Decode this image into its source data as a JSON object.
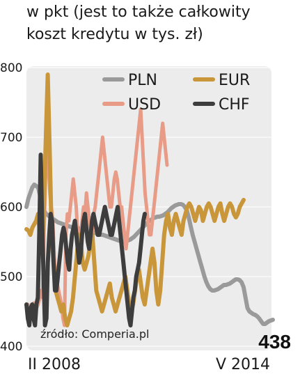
{
  "header": {
    "line1": "w pkt (jest to także całkowity",
    "line2": "koszt kredytu w tys. zł)"
  },
  "source": "źródło: Comperia.pl",
  "colors": {
    "PLN": "#9a9a9a",
    "USD": "#e89b86",
    "EUR": "#c9963a",
    "CHF": "#3d3d3d",
    "plot_bg": "#ececec"
  },
  "chart_data": {
    "type": "line",
    "x_start_label": "II 2008",
    "x_end_label": "V 2014",
    "ylim": [
      400,
      800
    ],
    "yticks": [
      "400",
      "500",
      "600",
      "700",
      "800"
    ],
    "last_value_label": "438",
    "series": [
      {
        "name": "PLN",
        "values": [
          600,
          612,
          620,
          628,
          632,
          630,
          628,
          615,
          604,
          595,
          590,
          588,
          586,
          584,
          582,
          580,
          578,
          577,
          576,
          575,
          574,
          573,
          572,
          571,
          571,
          570,
          570,
          569,
          568,
          567,
          566,
          566,
          565,
          565,
          564,
          563,
          562,
          561,
          560,
          560,
          559,
          558,
          557,
          556,
          555,
          554,
          553,
          552,
          551,
          550,
          550,
          551,
          552,
          553,
          555,
          557,
          560,
          563,
          566,
          569,
          572,
          575,
          578,
          580,
          582,
          584,
          585,
          586,
          586,
          587,
          588,
          590,
          592,
          595,
          598,
          600,
          602,
          603,
          604,
          604,
          603,
          600,
          595,
          585,
          572,
          560,
          550,
          540,
          530,
          520,
          510,
          500,
          492,
          486,
          482,
          480,
          480,
          481,
          482,
          484,
          486,
          488,
          488,
          489,
          490,
          492,
          494,
          496,
          496,
          495,
          492,
          485,
          470,
          455,
          450,
          448,
          446,
          445,
          443,
          440,
          436,
          432,
          432,
          434,
          436,
          437,
          438
        ]
      },
      {
        "name": "USD",
        "values": [
          460,
          455,
          450,
          458,
          462,
          460,
          455,
          460,
          468,
          480,
          470,
          560,
          640,
          680,
          660,
          620,
          600,
          580,
          530,
          500,
          490,
          480,
          470,
          460,
          440,
          430,
          560,
          590,
          580,
          600,
          620,
          640,
          620,
          600,
          560,
          540,
          560,
          580,
          600,
          590,
          620,
          600,
          580,
          560,
          560,
          590,
          600,
          620,
          640,
          660,
          680,
          700,
          680,
          660,
          640,
          620,
          600,
          600,
          620,
          640,
          650,
          640,
          620,
          600,
          600,
          580,
          560,
          540,
          560,
          580,
          600,
          620,
          640,
          660,
          680,
          700,
          720,
          740,
          700,
          660,
          620,
          600,
          580,
          560,
          560,
          580,
          600,
          620,
          640,
          660,
          680,
          700,
          720,
          700,
          680,
          660
        ]
      },
      {
        "name": "EUR",
        "values": [
          568,
          566,
          560,
          570,
          575,
          580,
          590,
          560,
          540,
          600,
          700,
          790,
          680,
          560,
          520,
          480,
          470,
          460,
          450,
          460,
          440,
          430,
          440,
          450,
          470,
          500,
          530,
          560,
          550,
          520,
          510,
          520,
          530,
          550,
          560,
          520,
          480,
          470,
          460,
          450,
          460,
          470,
          480,
          490,
          470,
          460,
          450,
          460,
          470,
          480,
          490,
          500,
          480,
          460,
          450,
          460,
          480,
          500,
          510,
          490,
          470,
          460,
          480,
          500,
          520,
          540,
          520,
          480,
          460,
          480,
          520,
          560,
          580,
          590,
          570,
          560,
          580,
          590,
          580,
          570,
          560,
          580,
          590,
          600,
          605,
          600,
          590,
          580,
          590,
          600,
          595,
          580,
          590,
          600,
          605,
          600,
          590,
          580,
          590,
          600,
          605,
          590,
          580,
          590,
          600,
          605,
          600,
          590,
          585,
          590,
          600,
          605,
          610
        ]
      },
      {
        "name": "CHF",
        "values": [
          460,
          440,
          430,
          455,
          460,
          440,
          430,
          460,
          470,
          560,
          675,
          580,
          500,
          430,
          440,
          520,
          560,
          590,
          580,
          520,
          480,
          480,
          500,
          520,
          540,
          560,
          570,
          560,
          540,
          520,
          510,
          540,
          560,
          570,
          580,
          560,
          540,
          520,
          530,
          560,
          580,
          590,
          570,
          550,
          540,
          560,
          580,
          590,
          580,
          570,
          560,
          560,
          570,
          580,
          590,
          600,
          590,
          580,
          570,
          560,
          560,
          570,
          580,
          590,
          600,
          580,
          560,
          540,
          520,
          500,
          480,
          460,
          440,
          430,
          450,
          470,
          480,
          500,
          510,
          520,
          540,
          560,
          580,
          590
        ]
      }
    ]
  }
}
